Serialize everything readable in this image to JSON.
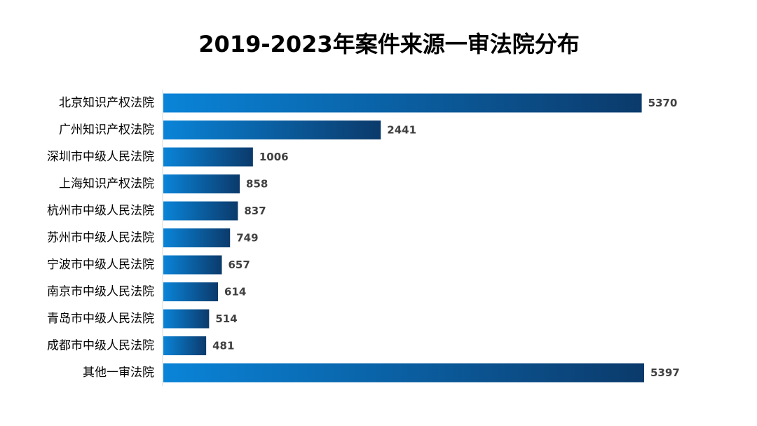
{
  "chart_data": {
    "type": "bar",
    "orientation": "horizontal",
    "title": "2019-2023年案件来源一审法院分布",
    "categories": [
      "北京知识产权法院",
      "广州知识产权法院",
      "深圳市中级人民法院",
      "上海知识产权法院",
      "杭州市中级人民法院",
      "苏州市中级人民法院",
      "宁波市中级人民法院",
      "南京市中级人民法院",
      "青岛市中级人民法院",
      "成都市中级人民法院",
      "其他一审法院"
    ],
    "values": [
      5370,
      2441,
      1006,
      858,
      837,
      749,
      657,
      614,
      514,
      481,
      5397
    ],
    "xlim": [
      0,
      5397
    ],
    "grid": false,
    "legend": false,
    "data_labels": true,
    "colors": {
      "bar_start": "#0a84d8",
      "bar_end": "#0b3a6b",
      "label_text": "#404040",
      "category_text": "#000000",
      "axis_line": "#d9d9d9"
    }
  }
}
